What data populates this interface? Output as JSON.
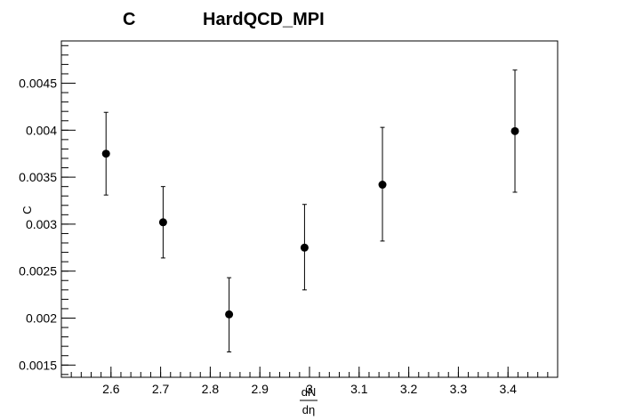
{
  "chart_data": {
    "type": "scatter",
    "title_left": "C",
    "title_right": "HardQCD_MPI",
    "xlabel_numerator": "dN",
    "xlabel_denominator": "dη",
    "ylabel": "C",
    "xlim": [
      2.5,
      3.5
    ],
    "ylim": [
      0.00137,
      0.00495
    ],
    "x_ticks": [
      2.6,
      2.7,
      2.8,
      2.9,
      3.0,
      3.1,
      3.2,
      3.3,
      3.4
    ],
    "x_tick_labels": [
      "2.6",
      "2.7",
      "2.8",
      "2.9",
      "3",
      "3.1",
      "3.2",
      "3.3",
      "3.4"
    ],
    "y_ticks": [
      0.0015,
      0.002,
      0.0025,
      0.003,
      0.0035,
      0.004,
      0.0045
    ],
    "y_tick_labels": [
      "0.0015",
      "0.002",
      "0.0025",
      "0.003",
      "0.0035",
      "0.004",
      "0.0045"
    ],
    "grid": false,
    "series": [
      {
        "x": [
          2.59,
          2.705,
          2.838,
          2.99,
          3.147,
          3.414
        ],
        "y": [
          0.00375,
          0.00302,
          0.00204,
          0.00275,
          0.00342,
          0.00399
        ],
        "yerr_low": [
          0.00044,
          0.00038,
          0.0004,
          0.00045,
          0.0006,
          0.00065
        ],
        "yerr_high": [
          0.00044,
          0.00038,
          0.00039,
          0.00046,
          0.00061,
          0.00065
        ],
        "color": "#000000"
      }
    ]
  }
}
